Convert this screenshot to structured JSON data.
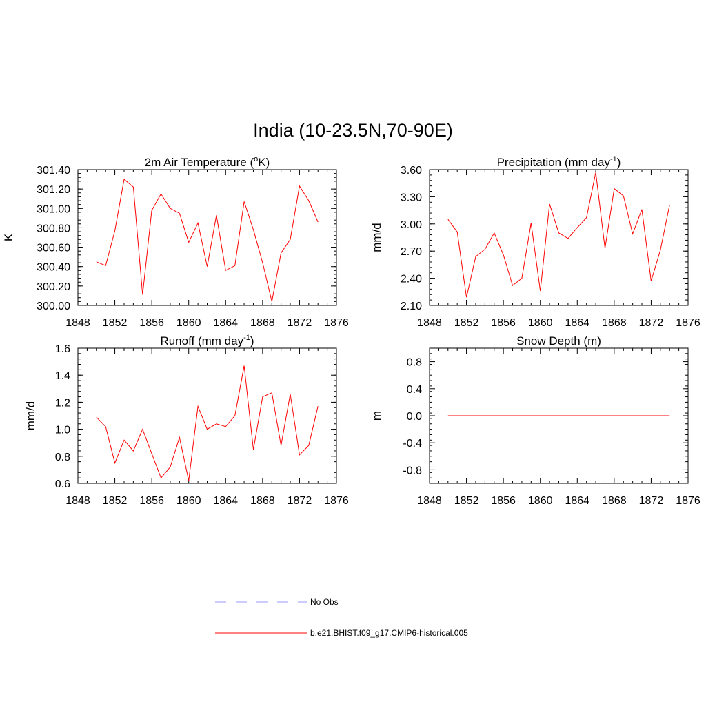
{
  "figure": {
    "title": "India (10-23.5N,70-90E)"
  },
  "chart_data": [
    {
      "type": "line",
      "title": "2m Air Temperature (oK)",
      "title_parts": {
        "pre": "2m Air Temperature (",
        "sup": "o",
        "post": "K)"
      },
      "ylabel": "K",
      "xlim": [
        1848,
        1876
      ],
      "ylim": [
        300.0,
        301.4
      ],
      "xticks": [
        1848,
        1852,
        1856,
        1860,
        1864,
        1868,
        1872,
        1876
      ],
      "yticks": [
        300.0,
        300.2,
        300.4,
        300.6,
        300.8,
        301.0,
        301.2,
        301.4
      ],
      "ytick_labels": [
        "300.00",
        "300.20",
        "300.40",
        "300.60",
        "300.80",
        "301.00",
        "301.20",
        "301.40"
      ],
      "x": [
        1850,
        1851,
        1852,
        1853,
        1854,
        1855,
        1856,
        1857,
        1858,
        1859,
        1860,
        1861,
        1862,
        1863,
        1864,
        1865,
        1866,
        1867,
        1868,
        1869,
        1870,
        1871,
        1872,
        1873,
        1874
      ],
      "series": [
        {
          "name": "b.e21.BHIST.f09_g17.CMIP6-historical.005",
          "color": "#ff0000",
          "values": [
            300.45,
            300.41,
            300.77,
            301.3,
            301.22,
            300.11,
            300.98,
            301.15,
            301.0,
            300.95,
            300.65,
            300.85,
            300.4,
            300.93,
            300.36,
            300.41,
            301.07,
            300.78,
            300.44,
            300.04,
            300.54,
            300.68,
            301.23,
            301.08,
            300.86
          ]
        }
      ]
    },
    {
      "type": "line",
      "title": "Precipitation (mm day-1)",
      "title_parts": {
        "pre": "Precipitation (mm day",
        "sup": "-1",
        "post": ")"
      },
      "ylabel": "mm/d",
      "xlim": [
        1848,
        1876
      ],
      "ylim": [
        2.1,
        3.6
      ],
      "xticks": [
        1848,
        1852,
        1856,
        1860,
        1864,
        1868,
        1872,
        1876
      ],
      "yticks": [
        2.1,
        2.4,
        2.7,
        3.0,
        3.3,
        3.6
      ],
      "ytick_labels": [
        "2.10",
        "2.40",
        "2.70",
        "3.00",
        "3.30",
        "3.60"
      ],
      "x": [
        1850,
        1851,
        1852,
        1853,
        1854,
        1855,
        1856,
        1857,
        1858,
        1859,
        1860,
        1861,
        1862,
        1863,
        1864,
        1865,
        1866,
        1867,
        1868,
        1869,
        1870,
        1871,
        1872,
        1873,
        1874
      ],
      "series": [
        {
          "name": "b.e21.BHIST.f09_g17.CMIP6-historical.005",
          "color": "#ff0000",
          "values": [
            3.05,
            2.91,
            2.19,
            2.64,
            2.72,
            2.9,
            2.66,
            2.32,
            2.4,
            3.01,
            2.26,
            3.22,
            2.9,
            2.84,
            2.96,
            3.07,
            3.57,
            2.73,
            3.39,
            3.31,
            2.89,
            3.16,
            2.37,
            2.71,
            3.21
          ]
        }
      ]
    },
    {
      "type": "line",
      "title": "Runoff (mm day-1)",
      "title_parts": {
        "pre": "Runoff (mm day",
        "sup": "-1",
        "post": ")"
      },
      "ylabel": "mm/d",
      "xlim": [
        1848,
        1876
      ],
      "ylim": [
        0.6,
        1.6
      ],
      "xticks": [
        1848,
        1852,
        1856,
        1860,
        1864,
        1868,
        1872,
        1876
      ],
      "yticks": [
        0.6,
        0.8,
        1.0,
        1.2,
        1.4,
        1.6
      ],
      "ytick_labels": [
        "0.6",
        "0.8",
        "1.0",
        "1.2",
        "1.4",
        "1.6"
      ],
      "x": [
        1850,
        1851,
        1852,
        1853,
        1854,
        1855,
        1856,
        1857,
        1858,
        1859,
        1860,
        1861,
        1862,
        1863,
        1864,
        1865,
        1866,
        1867,
        1868,
        1869,
        1870,
        1871,
        1872,
        1873,
        1874
      ],
      "series": [
        {
          "name": "b.e21.BHIST.f09_g17.CMIP6-historical.005",
          "color": "#ff0000",
          "values": [
            1.09,
            1.02,
            0.75,
            0.92,
            0.84,
            1.0,
            0.82,
            0.64,
            0.72,
            0.94,
            0.62,
            1.17,
            1.0,
            1.04,
            1.02,
            1.1,
            1.47,
            0.85,
            1.24,
            1.27,
            0.88,
            1.26,
            0.81,
            0.88,
            1.17
          ]
        }
      ]
    },
    {
      "type": "line",
      "title": "Snow Depth (m)",
      "title_parts": {
        "pre": "Snow Depth (m)",
        "sup": "",
        "post": ""
      },
      "ylabel": "m",
      "xlim": [
        1848,
        1876
      ],
      "ylim": [
        -1.0,
        1.0
      ],
      "xticks": [
        1848,
        1852,
        1856,
        1860,
        1864,
        1868,
        1872,
        1876
      ],
      "yticks": [
        -0.8,
        -0.4,
        0.0,
        0.4,
        0.8
      ],
      "ytick_labels": [
        "-0.8",
        "-0.4",
        "0.0",
        "0.4",
        "0.8"
      ],
      "x": [
        1850,
        1851,
        1852,
        1853,
        1854,
        1855,
        1856,
        1857,
        1858,
        1859,
        1860,
        1861,
        1862,
        1863,
        1864,
        1865,
        1866,
        1867,
        1868,
        1869,
        1870,
        1871,
        1872,
        1873,
        1874
      ],
      "series": [
        {
          "name": "b.e21.BHIST.f09_g17.CMIP6-historical.005",
          "color": "#ff0000",
          "values": [
            0,
            0,
            0,
            0,
            0,
            0,
            0,
            0,
            0,
            0,
            0,
            0,
            0,
            0,
            0,
            0,
            0,
            0,
            0,
            0,
            0,
            0,
            0,
            0,
            0
          ]
        }
      ]
    }
  ],
  "legend": {
    "items": [
      {
        "label": "No Obs",
        "color": "#9999ff",
        "style": "dashed"
      },
      {
        "label": "b.e21.BHIST.f09_g17.CMIP6-historical.005",
        "color": "#ff0000",
        "style": "solid"
      }
    ]
  }
}
